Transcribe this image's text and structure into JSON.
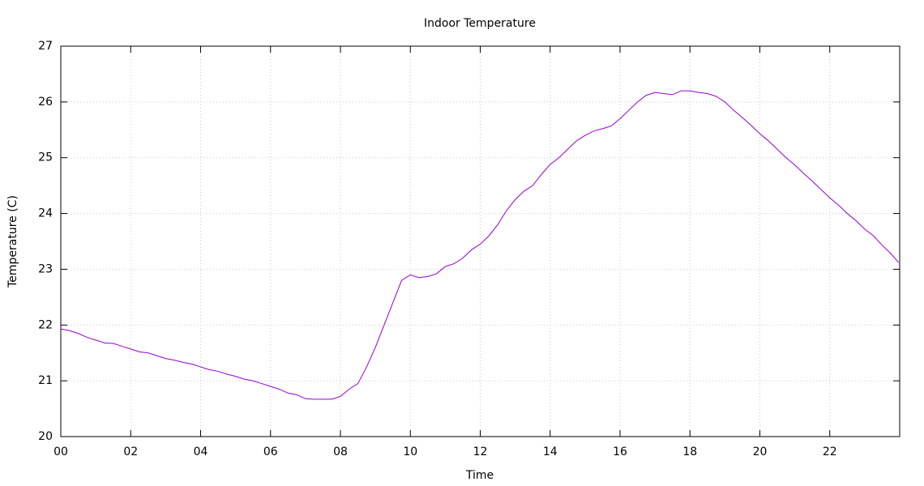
{
  "chart_data": {
    "type": "line",
    "title": "Indoor Temperature",
    "x_label": "Time",
    "y_label": "Temperature (C)",
    "x": [
      0,
      0.25,
      0.5,
      0.75,
      1,
      1.25,
      1.5,
      1.75,
      2,
      2.25,
      2.5,
      2.75,
      3,
      3.25,
      3.5,
      3.75,
      4,
      4.25,
      4.5,
      4.75,
      5,
      5.25,
      5.5,
      5.75,
      6,
      6.25,
      6.5,
      6.75,
      7,
      7.25,
      7.5,
      7.75,
      8,
      8.25,
      8.5,
      8.75,
      9,
      9.25,
      9.5,
      9.75,
      10,
      10.25,
      10.5,
      10.75,
      11,
      11.25,
      11.5,
      11.75,
      12,
      12.25,
      12.5,
      12.75,
      13,
      13.25,
      13.5,
      13.75,
      14,
      14.25,
      14.5,
      14.75,
      15,
      15.25,
      15.5,
      15.75,
      16,
      16.25,
      16.5,
      16.75,
      17,
      17.25,
      17.5,
      17.75,
      18,
      18.25,
      18.5,
      18.75,
      19,
      19.25,
      19.5,
      19.75,
      20,
      20.25,
      20.5,
      20.75,
      21,
      21.25,
      21.5,
      21.75,
      22,
      22.25,
      22.5,
      22.75,
      23,
      23.25,
      23.5,
      23.75,
      23.97
    ],
    "series": [
      {
        "name": "Indoor Temperature",
        "color": "#9400d3",
        "values": [
          21.93,
          21.9,
          21.85,
          21.78,
          21.73,
          21.68,
          21.67,
          21.62,
          21.57,
          21.52,
          21.5,
          21.45,
          21.4,
          21.37,
          21.33,
          21.3,
          21.25,
          21.2,
          21.17,
          21.12,
          21.08,
          21.03,
          21.0,
          20.95,
          20.9,
          20.85,
          20.78,
          20.75,
          20.68,
          20.67,
          20.67,
          20.67,
          20.72,
          20.85,
          20.95,
          21.25,
          21.6,
          22.0,
          22.4,
          22.8,
          22.9,
          22.85,
          22.87,
          22.92,
          23.05,
          23.1,
          23.2,
          23.35,
          23.45,
          23.6,
          23.8,
          24.05,
          24.25,
          24.4,
          24.5,
          24.7,
          24.88,
          25.0,
          25.15,
          25.3,
          25.4,
          25.48,
          25.52,
          25.57,
          25.7,
          25.85,
          26.0,
          26.12,
          26.17,
          26.15,
          26.13,
          26.2,
          26.2,
          26.17,
          26.15,
          26.1,
          26.0,
          25.85,
          25.72,
          25.58,
          25.43,
          25.3,
          25.15,
          25.0,
          24.87,
          24.72,
          24.58,
          24.43,
          24.28,
          24.15,
          24.0,
          23.87,
          23.72,
          23.6,
          23.43,
          23.28,
          23.12
        ]
      }
    ],
    "xlim": [
      0,
      24
    ],
    "xticks": [
      {
        "value": 0,
        "label": "00"
      },
      {
        "value": 2,
        "label": "02"
      },
      {
        "value": 4,
        "label": "04"
      },
      {
        "value": 6,
        "label": "06"
      },
      {
        "value": 8,
        "label": "08"
      },
      10,
      12,
      14,
      16,
      18,
      20,
      22
    ],
    "ylim": [
      20,
      27
    ],
    "yticks": [
      20,
      21,
      22,
      23,
      24,
      25,
      26,
      27
    ],
    "grid": true
  }
}
